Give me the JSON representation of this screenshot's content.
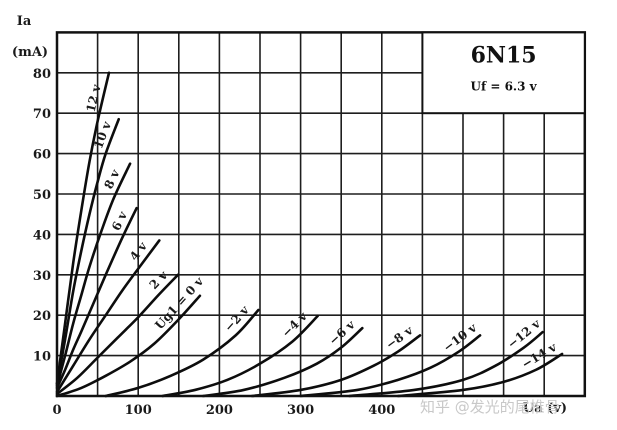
{
  "chart_data": {
    "type": "line",
    "title": "6N15",
    "subtitle": "Uf = 6.3 v",
    "xlabel": "Ua (v)",
    "ylabel": "Ia (mA)",
    "ylabel_line1": "Ia",
    "ylabel_line2": "(mA)",
    "xlim": [
      0,
      650
    ],
    "ylim": [
      0,
      90
    ],
    "x_ticks": [
      0,
      100,
      200,
      300,
      400
    ],
    "x_tick_labels": [
      "0",
      "100",
      "200",
      "300",
      "400"
    ],
    "y_ticks": [
      10,
      20,
      30,
      40,
      50,
      60,
      70,
      80
    ],
    "y_tick_labels": [
      "10",
      "20",
      "30",
      "40",
      "50",
      "60",
      "70",
      "80"
    ],
    "x_grid_step": 50,
    "y_grid_step": 10,
    "grid": true,
    "legend": "inline curve labels",
    "series": [
      {
        "name": "Ug1 = 12 v",
        "label": "12 v",
        "x": [
          0,
          10,
          20,
          30,
          40,
          50,
          64
        ],
        "y": [
          3,
          18,
          33,
          46,
          58,
          68,
          80
        ]
      },
      {
        "name": "Ug1 = 10 v",
        "label": "10 v",
        "x": [
          0,
          10,
          20,
          30,
          40,
          50,
          60,
          76
        ],
        "y": [
          3,
          14,
          26,
          36,
          45,
          53,
          60,
          68.5
        ]
      },
      {
        "name": "Ug1 = 8 v",
        "label": "8 v",
        "x": [
          0,
          10,
          20,
          30,
          40,
          55,
          70,
          90
        ],
        "y": [
          2.5,
          10,
          18,
          25,
          32,
          41,
          49,
          57.5
        ]
      },
      {
        "name": "Ug1 = 6 v",
        "label": "6 v",
        "x": [
          0,
          10,
          20,
          30,
          45,
          60,
          80,
          98
        ],
        "y": [
          2,
          6.5,
          11.5,
          16,
          23,
          30,
          39,
          46.5
        ]
      },
      {
        "name": "Ug1 = 4 v",
        "label": "4 v",
        "x": [
          0,
          20,
          40,
          60,
          80,
          100,
          126
        ],
        "y": [
          1,
          7.5,
          14,
          20,
          26,
          31.5,
          38.5
        ]
      },
      {
        "name": "Ug1 = 2 v",
        "label": "2 v",
        "x": [
          0,
          25,
          50,
          75,
          100,
          125,
          149
        ],
        "y": [
          0.5,
          4.5,
          9.5,
          14.5,
          19.5,
          25,
          30
        ]
      },
      {
        "name": "Ug1 = 0 v",
        "label": "Ug1 = 0 v",
        "x": [
          0,
          30,
          60,
          90,
          120,
          150,
          176
        ],
        "y": [
          0,
          2,
          5,
          8.5,
          13,
          19,
          24.8
        ]
      },
      {
        "name": "Ug1 = -2 v",
        "label": "−2 v",
        "x": [
          60,
          100,
          140,
          180,
          220,
          248
        ],
        "y": [
          0,
          2,
          5,
          9,
          15,
          21.3
        ]
      },
      {
        "name": "Ug1 = -4 v",
        "label": "−4 v",
        "x": [
          130,
          170,
          210,
          250,
          290,
          321
        ],
        "y": [
          0,
          1.5,
          4,
          8,
          13.5,
          19.8
        ]
      },
      {
        "name": "Ug1 = -6 v",
        "label": "−6 v",
        "x": [
          180,
          230,
          280,
          320,
          350,
          376
        ],
        "y": [
          0,
          1.5,
          4.5,
          8,
          12,
          16.8
        ]
      },
      {
        "name": "Ug1 = -8 v",
        "label": "−8 v",
        "x": [
          240,
          300,
          350,
          390,
          420,
          447
        ],
        "y": [
          0,
          1.5,
          4,
          7.5,
          11,
          15
        ]
      },
      {
        "name": "Ug1 = -10 v",
        "label": "−10 v",
        "x": [
          300,
          370,
          420,
          460,
          495,
          521
        ],
        "y": [
          0,
          1.5,
          4,
          7,
          11,
          15
        ]
      },
      {
        "name": "Ug1 = -12 v",
        "label": "−12 v",
        "x": [
          360,
          440,
          500,
          540,
          575,
          598
        ],
        "y": [
          0,
          1.5,
          4,
          7.5,
          12,
          15.8
        ]
      },
      {
        "name": "Ug1 = -14 v",
        "label": "−14 v",
        "x": [
          420,
          500,
          550,
          590,
          622
        ],
        "y": [
          0,
          1.5,
          3.5,
          6.5,
          10.4
        ]
      }
    ]
  },
  "watermark": "知乎 @发光的尾椎骨"
}
